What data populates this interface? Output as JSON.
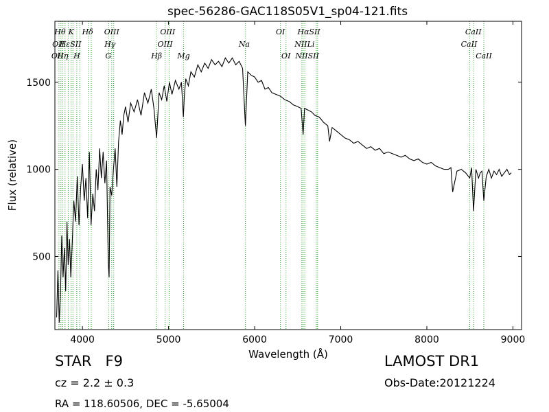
{
  "chart_data": {
    "type": "line",
    "title": "spec-56286-GAC118S05V1_sp04-121.fits",
    "xlabel": "Wavelength (Å)",
    "ylabel": "Flux (relative)",
    "xlim": [
      3680,
      9100
    ],
    "ylim": [
      80,
      1850
    ],
    "xticks": [
      4000,
      5000,
      6000,
      7000,
      8000,
      9000
    ],
    "xtick_labels": [
      "4000",
      "5000",
      "6000",
      "7000",
      "8000",
      "9000"
    ],
    "yticks": [
      500,
      1000,
      1500
    ],
    "ytick_labels": [
      "500",
      "1000",
      "1500"
    ],
    "grid": false,
    "legend": "none",
    "line_color": "#000000",
    "marker_line_color": "#2ca02c",
    "series": [
      {
        "values_x": [
          3700,
          3715,
          3730,
          3745,
          3760,
          3775,
          3790,
          3805,
          3820,
          3835,
          3850,
          3865,
          3880,
          3900,
          3920,
          3940,
          3960,
          3980,
          4000,
          4020,
          4040,
          4060,
          4080,
          4100,
          4120,
          4140,
          4160,
          4180,
          4200,
          4220,
          4240,
          4260,
          4280,
          4300,
          4310,
          4320,
          4340,
          4360,
          4380,
          4400,
          4420,
          4440,
          4460,
          4480,
          4500,
          4530,
          4560,
          4600,
          4640,
          4680,
          4720,
          4760,
          4800,
          4830,
          4861,
          4890,
          4920,
          4950,
          4980,
          5010,
          5040,
          5080,
          5120,
          5150,
          5172,
          5183,
          5200,
          5230,
          5260,
          5300,
          5340,
          5380,
          5420,
          5460,
          5500,
          5540,
          5580,
          5620,
          5660,
          5700,
          5740,
          5780,
          5820,
          5860,
          5893,
          5920,
          5960,
          6000,
          6040,
          6080,
          6120,
          6160,
          6200,
          6250,
          6300,
          6350,
          6400,
          6450,
          6500,
          6540,
          6563,
          6580,
          6620,
          6660,
          6700,
          6750,
          6800,
          6850,
          6870,
          6900,
          6950,
          7000,
          7050,
          7100,
          7150,
          7200,
          7250,
          7300,
          7350,
          7400,
          7450,
          7500,
          7550,
          7600,
          7650,
          7700,
          7750,
          7800,
          7850,
          7900,
          7950,
          8000,
          8050,
          8100,
          8150,
          8200,
          8250,
          8280,
          8300,
          8350,
          8400,
          8450,
          8498,
          8520,
          8542,
          8570,
          8600,
          8620,
          8640,
          8662,
          8690,
          8720,
          8750,
          8780,
          8810,
          8840,
          8870,
          8900,
          8930,
          8960,
          8980
        ],
        "values_y": [
          150,
          420,
          120,
          300,
          620,
          380,
          550,
          300,
          700,
          450,
          600,
          380,
          560,
          820,
          700,
          960,
          680,
          900,
          1030,
          820,
          950,
          720,
          1100,
          680,
          860,
          760,
          1000,
          880,
          1120,
          950,
          1100,
          920,
          1050,
          460,
          380,
          900,
          850,
          1000,
          1120,
          900,
          1160,
          1280,
          1200,
          1310,
          1360,
          1270,
          1380,
          1330,
          1400,
          1310,
          1440,
          1380,
          1460,
          1350,
          1180,
          1440,
          1400,
          1480,
          1390,
          1500,
          1430,
          1510,
          1460,
          1500,
          1300,
          1420,
          1520,
          1480,
          1560,
          1530,
          1600,
          1560,
          1610,
          1580,
          1630,
          1600,
          1620,
          1590,
          1640,
          1610,
          1640,
          1600,
          1620,
          1580,
          1250,
          1560,
          1540,
          1530,
          1500,
          1510,
          1460,
          1470,
          1440,
          1430,
          1420,
          1400,
          1390,
          1370,
          1360,
          1350,
          1200,
          1350,
          1340,
          1330,
          1310,
          1300,
          1270,
          1250,
          1160,
          1240,
          1220,
          1200,
          1180,
          1170,
          1150,
          1160,
          1140,
          1120,
          1130,
          1110,
          1120,
          1090,
          1100,
          1090,
          1080,
          1070,
          1080,
          1060,
          1050,
          1060,
          1040,
          1030,
          1040,
          1020,
          1010,
          1000,
          1000,
          1010,
          870,
          990,
          1000,
          980,
          950,
          1010,
          760,
          1000,
          950,
          980,
          990,
          820,
          960,
          1000,
          950,
          990,
          970,
          1000,
          960,
          980,
          1000,
          970,
          980
        ]
      }
    ],
    "lines": [
      {
        "x": 3727,
        "labels": [
          "OII"
        ]
      },
      {
        "x": 3750,
        "labels": [
          "Hθ"
        ]
      },
      {
        "x": 3770,
        "labels": [
          "Hη"
        ]
      },
      {
        "x": 3798,
        "labels": [
          "OII"
        ]
      },
      {
        "x": 3835,
        "labels": [
          "Hε"
        ]
      },
      {
        "x": 3869,
        "labels": [
          "K"
        ]
      },
      {
        "x": 3889,
        "labels": [
          "SII"
        ]
      },
      {
        "x": 3934,
        "labels": [
          "H"
        ]
      },
      {
        "x": 3969,
        "labels": [
          "Hδ"
        ]
      },
      {
        "x": 4070,
        "labels": [
          ""
        ]
      },
      {
        "x": 4102,
        "labels": [
          ""
        ]
      },
      {
        "x": 4304,
        "labels": [
          "G"
        ]
      },
      {
        "x": 4340,
        "labels": [
          "Hγ"
        ]
      },
      {
        "x": 4363,
        "labels": [
          "OIII"
        ]
      },
      {
        "x": 4861,
        "labels": [
          "Hβ"
        ]
      },
      {
        "x": 4959,
        "labels": [
          "OIII"
        ]
      },
      {
        "x": 5007,
        "labels": [
          "OIII"
        ]
      },
      {
        "x": 5175,
        "labels": [
          "Mg"
        ]
      },
      {
        "x": 5893,
        "labels": [
          "Na"
        ]
      },
      {
        "x": 6300,
        "labels": [
          "OI"
        ]
      },
      {
        "x": 6364,
        "labels": [
          "OI"
        ]
      },
      {
        "x": 6548,
        "labels": [
          "NII"
        ]
      },
      {
        "x": 6563,
        "labels": [
          "Hα"
        ]
      },
      {
        "x": 6583,
        "labels": [
          "NII"
        ]
      },
      {
        "x": 6716,
        "labels": [
          "SII"
        ]
      },
      {
        "x": 6731,
        "labels": [
          "SII"
        ]
      },
      {
        "x": 8498,
        "labels": [
          "CaII"
        ]
      },
      {
        "x": 8542,
        "labels": [
          "CaII"
        ]
      },
      {
        "x": 8662,
        "labels": [
          "CaII"
        ]
      }
    ],
    "line_label_items": [
      {
        "text": "Hθ",
        "x": 3740,
        "row": 0
      },
      {
        "text": "K",
        "x": 3869,
        "row": 0
      },
      {
        "text": "Hδ",
        "x": 4060,
        "row": 0
      },
      {
        "text": "OIII",
        "x": 4340,
        "row": 0
      },
      {
        "text": "OIII",
        "x": 4990,
        "row": 0
      },
      {
        "text": "OI",
        "x": 6300,
        "row": 0
      },
      {
        "text": "HαSII",
        "x": 6630,
        "row": 0
      },
      {
        "text": "CaII",
        "x": 8540,
        "row": 0
      },
      {
        "text": "OII",
        "x": 3720,
        "row": 1
      },
      {
        "text": "HεSII",
        "x": 3860,
        "row": 1
      },
      {
        "text": "Hγ",
        "x": 4320,
        "row": 1
      },
      {
        "text": "OIII",
        "x": 4960,
        "row": 1
      },
      {
        "text": "Na",
        "x": 5880,
        "row": 1
      },
      {
        "text": "NIILi",
        "x": 6580,
        "row": 1
      },
      {
        "text": "CaII",
        "x": 8490,
        "row": 1
      },
      {
        "text": "OII",
        "x": 3710,
        "row": 2
      },
      {
        "text": "Hη",
        "x": 3770,
        "row": 2
      },
      {
        "text": "H",
        "x": 3934,
        "row": 2
      },
      {
        "text": "G",
        "x": 4300,
        "row": 2
      },
      {
        "text": "Hβ",
        "x": 4861,
        "row": 2
      },
      {
        "text": "Mg",
        "x": 5175,
        "row": 2
      },
      {
        "text": "OI",
        "x": 6364,
        "row": 2
      },
      {
        "text": "NIISII",
        "x": 6610,
        "row": 2
      },
      {
        "text": "CaII",
        "x": 8662,
        "row": 2
      }
    ]
  },
  "info": {
    "object_class": "STAR",
    "subclass": "F9",
    "redshift": "cz = 2.2 ± 0.3",
    "coords": "RA = 118.60506, DEC = -5.65004",
    "survey": "LAMOST DR1",
    "obs_date": "Obs-Date:20121224"
  }
}
